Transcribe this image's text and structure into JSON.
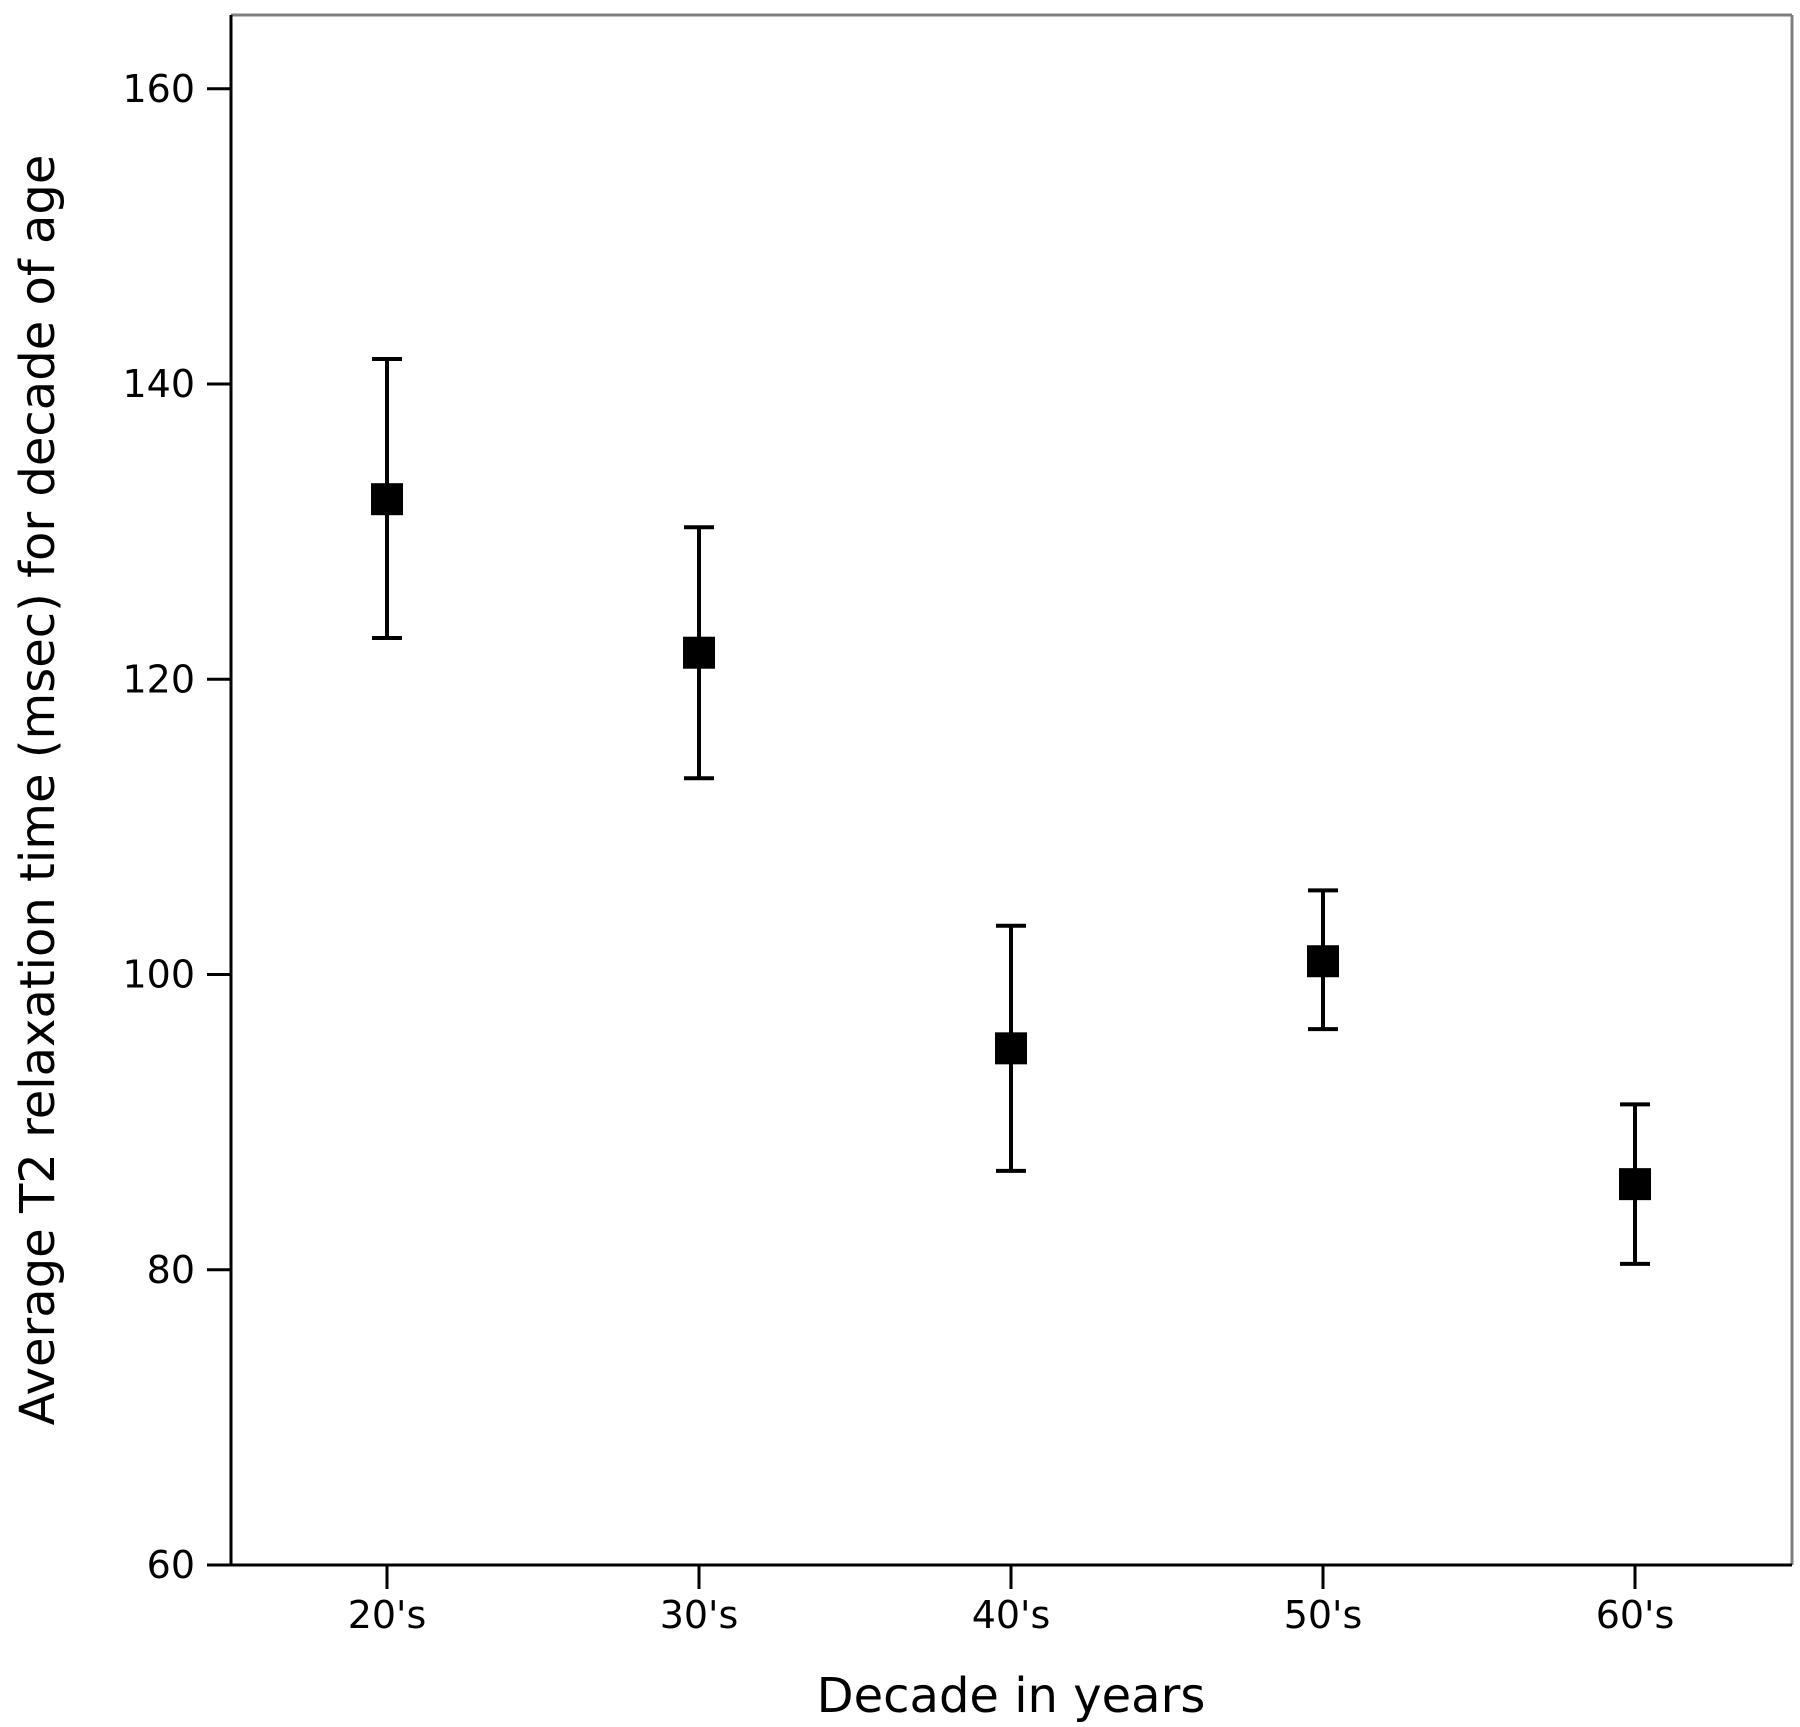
{
  "chart_data": {
    "type": "scatter",
    "title": "",
    "xlabel": "Decade in years",
    "ylabel": "Average T2 relaxation time (msec) for decade of age",
    "categories": [
      "20's",
      "30's",
      "40's",
      "50's",
      "60's"
    ],
    "series": [
      {
        "values": [
          132.2,
          121.8,
          95.0,
          100.9,
          85.8
        ],
        "error_upper": [
          141.7,
          130.3,
          103.3,
          105.7,
          91.2
        ],
        "error_lower": [
          122.8,
          113.3,
          86.7,
          96.3,
          80.4
        ]
      }
    ],
    "ylim": [
      60,
      165
    ],
    "yticks": [
      60,
      80,
      100,
      120,
      140,
      160
    ],
    "ytick_labels": [
      "60",
      "80",
      "100",
      "120",
      "140",
      "160"
    ],
    "grid": false,
    "colors": {
      "marker": "#000000",
      "axis": "#000000",
      "frame": "#808080"
    }
  }
}
